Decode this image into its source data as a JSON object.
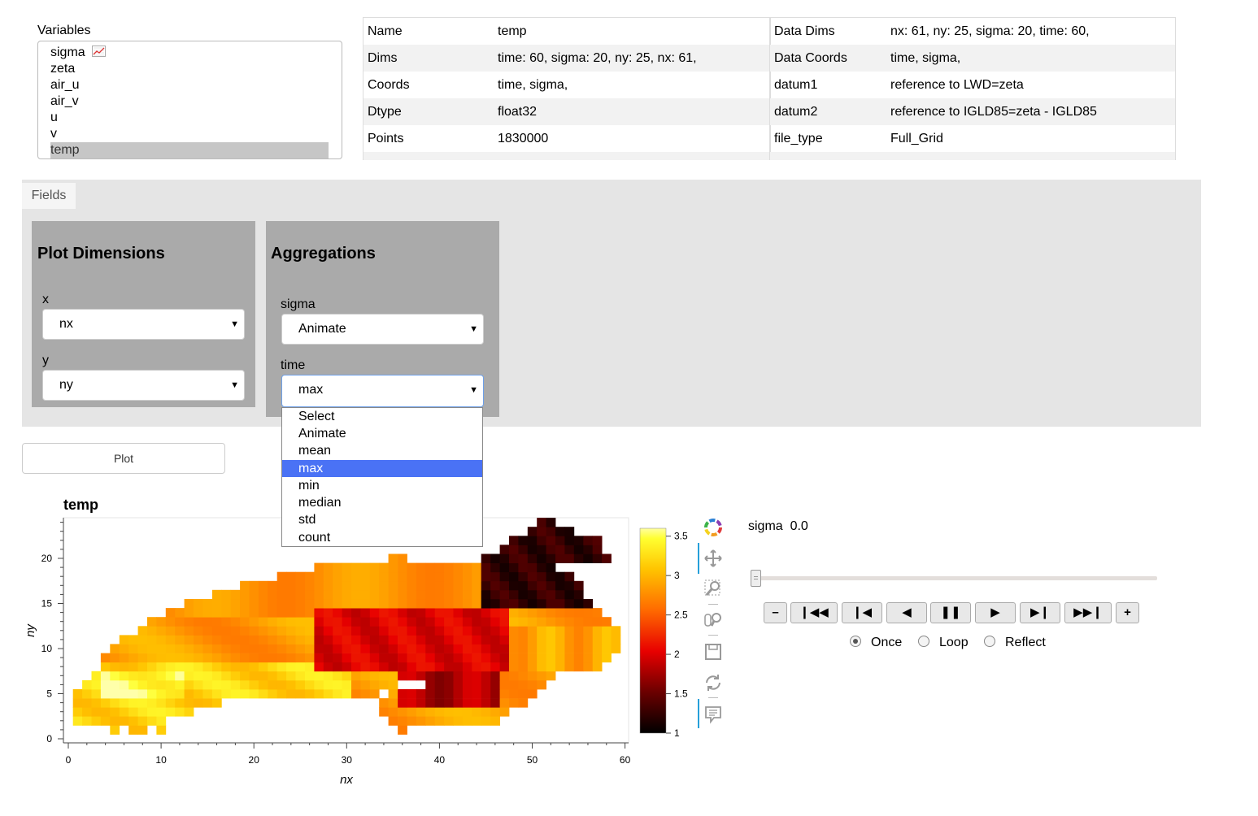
{
  "variables": {
    "label": "Variables",
    "items": [
      "sigma",
      "zeta",
      "air_u",
      "air_v",
      "u",
      "v",
      "temp"
    ],
    "selected": "temp",
    "sigma_icon": "line-chart-icon"
  },
  "info_left": [
    {
      "key": "Name",
      "value": "temp"
    },
    {
      "key": "Dims",
      "value": "time: 60, sigma: 20, ny: 25, nx: 61,"
    },
    {
      "key": "Coords",
      "value": "time, sigma,"
    },
    {
      "key": "Dtype",
      "value": "float32"
    },
    {
      "key": "Points",
      "value": "1830000"
    }
  ],
  "info_right": [
    {
      "key": "Data Dims",
      "value": "nx: 61, ny: 25, sigma: 20, time: 60,"
    },
    {
      "key": "Data Coords",
      "value": "time, sigma,"
    },
    {
      "key": "datum1",
      "value": "reference to LWD=zeta"
    },
    {
      "key": "datum2",
      "value": "reference to IGLD85=zeta - IGLD85"
    },
    {
      "key": "file_type",
      "value": "Full_Grid"
    }
  ],
  "fields": {
    "tab_label": "Fields",
    "plot_dims": {
      "title": "Plot Dimensions",
      "x_label": "x",
      "x_value": "nx",
      "y_label": "y",
      "y_value": "ny"
    },
    "aggregations": {
      "title": "Aggregations",
      "sigma_label": "sigma",
      "sigma_value": "Animate",
      "time_label": "time",
      "time_value": "max",
      "time_options": [
        "Select",
        "Animate",
        "mean",
        "max",
        "min",
        "median",
        "std",
        "count"
      ]
    }
  },
  "plot_button": "Plot",
  "chart_data": {
    "type": "heatmap",
    "title": "temp",
    "xlabel": "nx",
    "ylabel": "ny",
    "xlim": [
      0,
      60
    ],
    "ylim": [
      0,
      24
    ],
    "x_ticks": [
      "0",
      "10",
      "20",
      "30",
      "40",
      "50",
      "60"
    ],
    "y_ticks": [
      "0",
      "5",
      "10",
      "15",
      "20"
    ],
    "colorbar": {
      "min": 1,
      "max": 3.6,
      "ticks": [
        "1",
        "1.5",
        "2",
        "2.5",
        "3",
        "3.5"
      ]
    },
    "colormap": "fire"
  },
  "toolbar_icons": [
    "bokeh-logo-icon",
    "pan-icon",
    "box-zoom-icon",
    "wheel-zoom-icon",
    "save-icon",
    "reset-icon",
    "hover-icon"
  ],
  "player": {
    "label": "sigma",
    "value": "0.0",
    "buttons": [
      "–",
      "❙◀◀",
      "❙◀",
      "◀",
      "❚❚",
      "▶",
      "▶❙",
      "▶▶❙",
      "+"
    ],
    "modes": [
      "Once",
      "Loop",
      "Reflect"
    ],
    "mode_selected": "Once"
  }
}
